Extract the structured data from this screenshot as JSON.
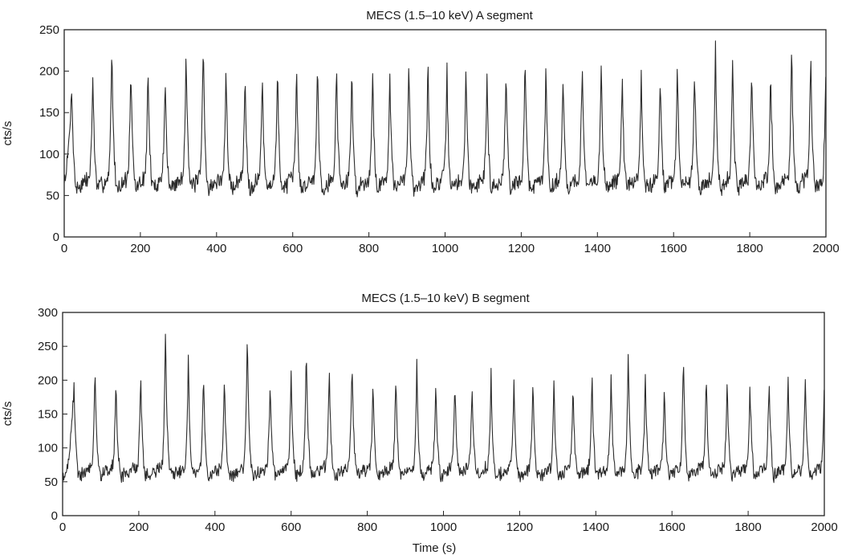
{
  "chart_data": [
    {
      "type": "line",
      "title": "MECS (1.5–10 keV) A segment",
      "xlabel": "",
      "ylabel": "cts/s",
      "xlim": [
        0,
        2000
      ],
      "ylim": [
        0,
        250
      ],
      "xticks": [
        0,
        200,
        400,
        600,
        800,
        1000,
        1200,
        1400,
        1600,
        1800,
        2000
      ],
      "yticks": [
        0,
        50,
        100,
        150,
        200,
        250
      ],
      "grid": false,
      "legend": "none",
      "color": "#2b2b2b",
      "pattern": {
        "description": "quasi-periodic bursts",
        "baseline": 45,
        "burst_peak_times": [
          20,
          75,
          125,
          175,
          220,
          265,
          320,
          365,
          425,
          475,
          520,
          560,
          610,
          665,
          715,
          755,
          810,
          855,
          905,
          955,
          1005,
          1055,
          1110,
          1160,
          1210,
          1265,
          1310,
          1360,
          1410,
          1465,
          1515,
          1565,
          1610,
          1655,
          1710,
          1755,
          1805,
          1855,
          1910,
          1960,
          2000
        ],
        "burst_peak_values": [
          185,
          200,
          238,
          208,
          206,
          200,
          238,
          240,
          205,
          200,
          195,
          205,
          205,
          215,
          212,
          205,
          203,
          205,
          215,
          212,
          200,
          205,
          195,
          210,
          225,
          210,
          205,
          215,
          210,
          200,
          195,
          200,
          210,
          210,
          230,
          220,
          205,
          205,
          232,
          225,
          215
        ]
      }
    },
    {
      "type": "line",
      "title": "MECS (1.5–10 keV) B segment",
      "xlabel": "Time (s)",
      "ylabel": "cts/s",
      "xlim": [
        0,
        2000
      ],
      "ylim": [
        0,
        300
      ],
      "xticks": [
        0,
        200,
        400,
        600,
        800,
        1000,
        1200,
        1400,
        1600,
        1800,
        2000
      ],
      "yticks": [
        0,
        50,
        100,
        150,
        200,
        250,
        300
      ],
      "grid": false,
      "legend": "none",
      "color": "#2b2b2b",
      "pattern": {
        "description": "quasi-periodic bursts",
        "baseline": 45,
        "burst_peak_times": [
          30,
          85,
          140,
          205,
          270,
          330,
          370,
          425,
          485,
          545,
          600,
          640,
          700,
          760,
          815,
          875,
          930,
          980,
          1030,
          1075,
          1125,
          1185,
          1235,
          1290,
          1340,
          1390,
          1440,
          1485,
          1530,
          1580,
          1630,
          1690,
          1745,
          1805,
          1855,
          1905,
          1950,
          2000
        ],
        "burst_peak_values": [
          200,
          225,
          205,
          215,
          278,
          240,
          215,
          210,
          278,
          200,
          218,
          255,
          225,
          235,
          195,
          210,
          225,
          200,
          200,
          195,
          210,
          200,
          205,
          195,
          200,
          215,
          210,
          238,
          210,
          190,
          240,
          210,
          200,
          195,
          210,
          205,
          210,
          195
        ]
      }
    }
  ]
}
